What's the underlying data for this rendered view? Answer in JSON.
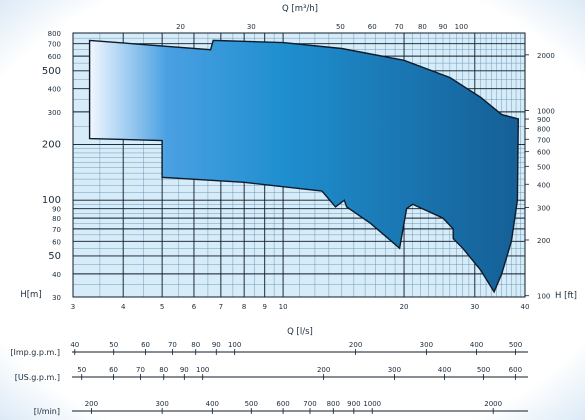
{
  "chart_data": {
    "type": "area",
    "x_unit_top": "Q [m³/h]",
    "x_unit_bottom": "Q [l/s]",
    "y_unit_left": "H[m]",
    "y_unit_right": "H [ft]",
    "xlim": [
      3,
      40
    ],
    "ylim": [
      30,
      800
    ],
    "x_scale": "log",
    "y_scale": "log",
    "x_ticks_ls": [
      "3",
      "4",
      "5",
      "6",
      "7",
      "8",
      "9",
      "10",
      "20",
      "30",
      "40"
    ],
    "x_ticks_m3h": [
      "20",
      "30",
      "50",
      "60",
      "70",
      "80",
      "90",
      "100"
    ],
    "y_ticks_m": [
      "30",
      "40",
      "50",
      "60",
      "70",
      "80",
      "90",
      "100",
      "200",
      "300",
      "400",
      "500",
      "600",
      "700",
      "800"
    ],
    "y_ticks_ft": [
      "100",
      "200",
      "300",
      "400",
      "500",
      "600",
      "700",
      "800",
      "900",
      "1000",
      "2000"
    ],
    "scales": [
      {
        "label": "[Imp.g.p.m.]",
        "ticks": [
          "40",
          "50",
          "60",
          "70",
          "80",
          "90",
          "100",
          "200",
          "300",
          "400",
          "500"
        ]
      },
      {
        "label": "[US.g.p.m.]",
        "ticks": [
          "50",
          "60",
          "70",
          "80",
          "90",
          "100",
          "200",
          "300",
          "400",
          "500",
          "600"
        ]
      },
      {
        "label": "[l/min]",
        "ticks": [
          "200",
          "300",
          "400",
          "500",
          "600",
          "700",
          "800",
          "900",
          "1000",
          "2000"
        ]
      }
    ],
    "series": [
      {
        "points": [
          [
            3.3,
            730
          ],
          [
            6.6,
            650
          ],
          [
            6.7,
            730
          ],
          [
            10,
            710
          ],
          [
            14,
            660
          ],
          [
            20,
            570
          ],
          [
            26,
            460
          ],
          [
            31,
            360
          ],
          [
            35,
            290
          ],
          [
            38.5,
            275
          ],
          [
            38.3,
            100
          ],
          [
            37,
            60
          ],
          [
            35,
            40
          ],
          [
            33.5,
            32
          ],
          [
            31,
            42
          ],
          [
            28,
            55
          ],
          [
            26.5,
            62
          ],
          [
            26.5,
            70
          ],
          [
            25,
            80
          ],
          [
            21,
            95
          ],
          [
            20.3,
            90
          ],
          [
            19.5,
            55
          ],
          [
            16.5,
            75
          ],
          [
            14.4,
            92
          ],
          [
            14.2,
            100
          ],
          [
            13.5,
            92
          ],
          [
            12.5,
            112
          ],
          [
            8,
            125
          ],
          [
            5,
            133
          ],
          [
            5,
            210
          ],
          [
            3.3,
            215
          ]
        ]
      }
    ]
  }
}
